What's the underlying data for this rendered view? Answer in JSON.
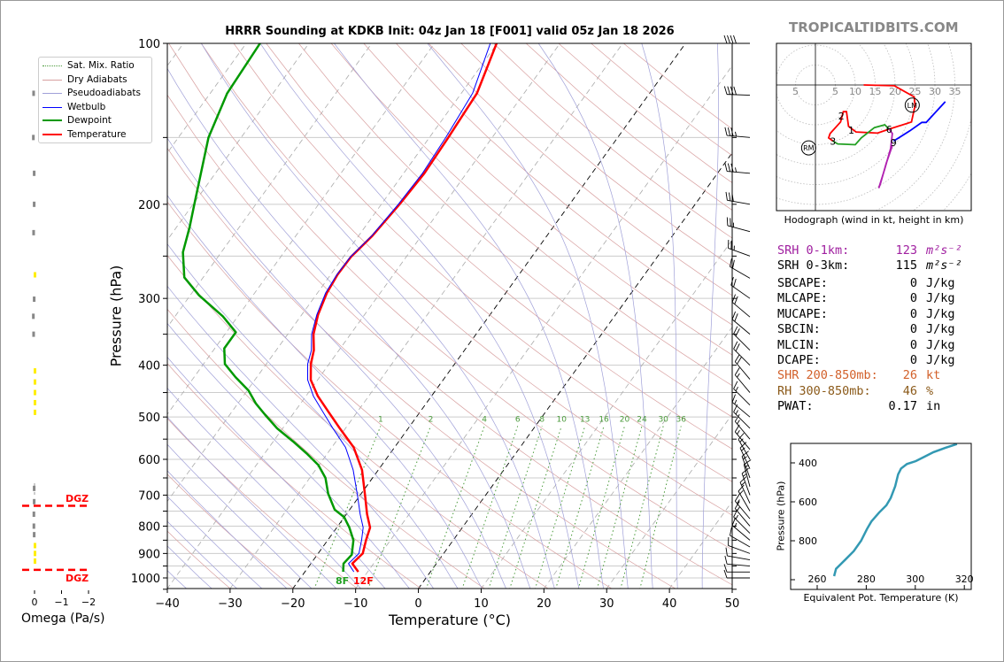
{
  "title": "HRRR Sounding at KDKB Init: 04z Jan 18 [F001] valid 05z Jan 18 2026",
  "watermark": "TROPICALTIDBITS.COM",
  "legend": [
    {
      "label": "Sat. Mix. Ratio",
      "color": "#4a9a3a",
      "style": "dotted"
    },
    {
      "label": "Dry Adiabats",
      "color": "#d8a0a0",
      "style": "solid"
    },
    {
      "label": "Pseudoadiabats",
      "color": "#a0a0d8",
      "style": "solid"
    },
    {
      "label": "Wetbulb",
      "color": "#0000ff",
      "style": "thin"
    },
    {
      "label": "Dewpoint",
      "color": "#009900",
      "style": "thick"
    },
    {
      "label": "Temperature",
      "color": "#ff0000",
      "style": "thick"
    }
  ],
  "chart_data": [
    {
      "type": "line",
      "name": "skew-t",
      "xlabel": "Temperature (°C)",
      "ylabel": "Pressure (hPa)",
      "xlim": [
        -40,
        50
      ],
      "ylim": [
        1050,
        100
      ],
      "xticks": [
        "−40",
        "−30",
        "−20",
        "−10",
        "0",
        "10",
        "20",
        "30",
        "40",
        "50"
      ],
      "xtick_values": [
        -40,
        -30,
        -20,
        -10,
        0,
        10,
        20,
        30,
        40,
        50
      ],
      "yticks": [
        "100",
        "200",
        "300",
        "400",
        "500",
        "600",
        "700",
        "800",
        "900",
        "1000"
      ],
      "ytick_values": [
        100,
        200,
        300,
        400,
        500,
        600,
        700,
        800,
        900,
        1000
      ],
      "mixing_ratio_labels": [
        "1",
        "2",
        "4",
        "6",
        "8",
        "10",
        "13",
        "16",
        "20",
        "24",
        "30",
        "36"
      ],
      "mixing_ratio_values": [
        1,
        2,
        4,
        6,
        8,
        10,
        13,
        16,
        20,
        24,
        30,
        36
      ],
      "surface_dewpoint_label": "8F",
      "surface_temperature_label": "12F",
      "series": [
        {
          "name": "Temperature",
          "color": "#ff0000",
          "p": [
            974,
            940,
            900,
            850,
            805,
            760,
            705,
            628,
            570,
            525,
            490,
            457,
            426,
            398,
            375,
            350,
            322,
            293,
            271,
            251,
            229,
            200,
            175,
            150,
            124,
            100
          ],
          "t": [
            -11.5,
            -13.4,
            -12.9,
            -13.9,
            -14.7,
            -16.7,
            -19.0,
            -22.6,
            -26.5,
            -30.9,
            -34.5,
            -38.1,
            -41.1,
            -42.9,
            -44.0,
            -45.9,
            -47.4,
            -48.5,
            -48.9,
            -48.8,
            -47.8,
            -47.1,
            -46.7,
            -47.0,
            -47.5,
            -50.1
          ]
        },
        {
          "name": "Wetbulb",
          "color": "#0000ff",
          "p": [
            974,
            940,
            900,
            850,
            805,
            760,
            705,
            628,
            570,
            525,
            490,
            457,
            426,
            398,
            375,
            350,
            322,
            293,
            271,
            251,
            229,
            200,
            175,
            150,
            124,
            100
          ],
          "t": [
            -12.2,
            -14.0,
            -13.5,
            -14.6,
            -15.8,
            -17.8,
            -20.2,
            -24.0,
            -27.8,
            -32.0,
            -35.4,
            -38.8,
            -41.6,
            -43.4,
            -44.4,
            -46.2,
            -47.6,
            -48.7,
            -49.0,
            -48.9,
            -47.9,
            -47.3,
            -47.0,
            -47.4,
            -48.2,
            -51.1
          ]
        },
        {
          "name": "Dewpoint",
          "color": "#009900",
          "p": [
            974,
            940,
            905,
            850,
            805,
            770,
            745,
            695,
            650,
            615,
            585,
            555,
            525,
            495,
            472,
            446,
            421,
            398,
            372,
            347,
            324,
            296,
            274,
            246,
            221,
            200,
            150,
            124,
            100
          ],
          "t": [
            -13.9,
            -14.8,
            -14.5,
            -15.9,
            -18.0,
            -20.0,
            -22.4,
            -25.3,
            -27.5,
            -30.1,
            -33.3,
            -36.9,
            -40.9,
            -44.4,
            -47.1,
            -49.8,
            -53.4,
            -56.6,
            -58.5,
            -58.5,
            -62.4,
            -68.6,
            -73.0,
            -76.1,
            -77.9,
            -79.8,
            -85.2,
            -87.3,
            -87.8
          ]
        }
      ],
      "winds": [
        {
          "p": 100,
          "dir": 270,
          "spd": 40
        },
        {
          "p": 125,
          "dir": 272,
          "spd": 40
        },
        {
          "p": 150,
          "dir": 275,
          "spd": 35
        },
        {
          "p": 175,
          "dir": 275,
          "spd": 35
        },
        {
          "p": 200,
          "dir": 280,
          "spd": 30
        },
        {
          "p": 225,
          "dir": 285,
          "spd": 25
        },
        {
          "p": 250,
          "dir": 290,
          "spd": 25
        },
        {
          "p": 275,
          "dir": 300,
          "spd": 20
        },
        {
          "p": 300,
          "dir": 305,
          "spd": 20
        },
        {
          "p": 325,
          "dir": 310,
          "spd": 20
        },
        {
          "p": 350,
          "dir": 310,
          "spd": 20
        },
        {
          "p": 375,
          "dir": 315,
          "spd": 20
        },
        {
          "p": 400,
          "dir": 315,
          "spd": 20
        },
        {
          "p": 425,
          "dir": 320,
          "spd": 20
        },
        {
          "p": 450,
          "dir": 320,
          "spd": 15
        },
        {
          "p": 475,
          "dir": 315,
          "spd": 15
        },
        {
          "p": 500,
          "dir": 310,
          "spd": 15
        },
        {
          "p": 525,
          "dir": 315,
          "spd": 15
        },
        {
          "p": 550,
          "dir": 320,
          "spd": 15
        },
        {
          "p": 575,
          "dir": 320,
          "spd": 15
        },
        {
          "p": 600,
          "dir": 330,
          "spd": 15
        },
        {
          "p": 625,
          "dir": 335,
          "spd": 15
        },
        {
          "p": 650,
          "dir": 340,
          "spd": 15
        },
        {
          "p": 675,
          "dir": 345,
          "spd": 15
        },
        {
          "p": 700,
          "dir": 340,
          "spd": 15
        },
        {
          "p": 725,
          "dir": 335,
          "spd": 15
        },
        {
          "p": 750,
          "dir": 330,
          "spd": 15
        },
        {
          "p": 775,
          "dir": 320,
          "spd": 15
        },
        {
          "p": 800,
          "dir": 320,
          "spd": 15
        },
        {
          "p": 825,
          "dir": 315,
          "spd": 15
        },
        {
          "p": 850,
          "dir": 310,
          "spd": 15
        },
        {
          "p": 875,
          "dir": 300,
          "spd": 10
        },
        {
          "p": 900,
          "dir": 290,
          "spd": 10
        },
        {
          "p": 925,
          "dir": 280,
          "spd": 10
        },
        {
          "p": 950,
          "dir": 275,
          "spd": 10
        },
        {
          "p": 975,
          "dir": 270,
          "spd": 10
        },
        {
          "p": 1000,
          "dir": 270,
          "spd": 10
        }
      ]
    },
    {
      "type": "line",
      "name": "hodograph",
      "xlabel": "Hodograph (wind in kt, height in km)",
      "ring_labels": [
        "5",
        "5",
        "10",
        "15",
        "20",
        "25",
        "30",
        "35"
      ],
      "ring_label_values": [
        -5,
        5,
        10,
        15,
        20,
        25,
        30,
        35
      ],
      "segments": [
        {
          "name": "0-3km",
          "color": "#ff0000",
          "u": [
            12.1,
            19.8,
            24.8,
            25.0,
            24.1,
            18.5,
            15.6,
            10.2,
            8.3,
            7.8,
            7.0,
            6.3,
            3.7,
            3.3,
            4.4
          ],
          "v": [
            0,
            -0.2,
            -3.0,
            -5.2,
            -9.3,
            -11.1,
            -12.1,
            -11.8,
            -10.4,
            -6.7,
            -6.7,
            -9.3,
            -12.2,
            -13.3,
            -14.1
          ]
        },
        {
          "name": "3-6km",
          "color": "#22a022",
          "u": [
            4.4,
            5.6,
            10.0,
            11.5,
            14.8,
            17.4,
            18.5
          ],
          "v": [
            -14.1,
            -14.8,
            -15.0,
            -13.3,
            -10.7,
            -10.0,
            -11.1
          ]
        },
        {
          "name": "6-9km",
          "color": "#b020b0",
          "u": [
            18.5,
            19.3,
            18.9,
            17.4,
            15.9,
            16.3,
            17.8,
            19.3
          ],
          "v": [
            -11.1,
            -12.2,
            -15.9,
            -21.1,
            -25.9,
            -24.8,
            -19.6,
            -15.2
          ]
        },
        {
          "name": "9-12km",
          "color": "#0000ff",
          "u": [
            19.6,
            23.7,
            26.7,
            27.8,
            32.6
          ],
          "v": [
            -14.1,
            -11.5,
            -9.4,
            -9.4,
            -4.2
          ]
        }
      ],
      "height_labels": [
        {
          "text": "1",
          "u": 9.0,
          "v": -11.3
        },
        {
          "text": "2",
          "u": 6.5,
          "v": -7.8
        },
        {
          "text": "3",
          "u": 4.4,
          "v": -14.1
        },
        {
          "text": "6",
          "u": 18.5,
          "v": -11.1
        },
        {
          "text": "9",
          "u": 19.6,
          "v": -14.4
        }
      ],
      "storm_motion": [
        {
          "text": "RM",
          "u": -1.7,
          "v": -15.8
        },
        {
          "text": "LM",
          "u": 24.3,
          "v": -4.4
        }
      ]
    },
    {
      "type": "line",
      "name": "theta-e",
      "xlabel": "Equivalent Pot. Temperature (K)",
      "ylabel": "Pressure (hPa)",
      "xlim": [
        249,
        323
      ],
      "ylim": [
        1050,
        300
      ],
      "xticks": [
        "260",
        "280",
        "300",
        "320"
      ],
      "xtick_values": [
        260,
        280,
        300,
        320
      ],
      "yticks": [
        "400",
        "600",
        "800"
      ],
      "ytick_values": [
        400,
        600,
        800,
        1000
      ],
      "color": "#3399b3",
      "theta_e": [
        266.9,
        267.7,
        271.3,
        274.9,
        277.9,
        280.3,
        282.1,
        285.2,
        288.2,
        290.0,
        291.8,
        293.0,
        294.2,
        296.6,
        300.2,
        303.8,
        307.4,
        312.2,
        317.0
      ],
      "p": [
        982,
        944,
        899,
        853,
        800,
        740,
        701,
        656,
        618,
        580,
        520,
        459,
        429,
        406,
        391,
        368,
        345,
        323,
        303
      ]
    },
    {
      "type": "bar",
      "name": "omega",
      "xlabel": "Omega (Pa/s)",
      "xticks": [
        "0",
        "−1",
        "−2"
      ],
      "xtick_values": [
        0,
        -1,
        -2
      ],
      "dgz_label": "DGZ",
      "dgz_pressures": [
        733,
        966
      ],
      "p": [
        124,
        150,
        175,
        200,
        226,
        271,
        301,
        324,
        350,
        410,
        430,
        450,
        470,
        490,
        680,
        720,
        760,
        800,
        830,
        870,
        900,
        930
      ],
      "omega": [
        0.05,
        0.06,
        0.03,
        0.03,
        0.05,
        -0.02,
        0.03,
        0.06,
        0.05,
        -0.03,
        -0.04,
        -0.04,
        -0.03,
        -0.02,
        0.03,
        0.03,
        0.04,
        0.04,
        0.03,
        -0.03,
        -0.05,
        -0.05
      ]
    }
  ],
  "stats": [
    {
      "label": "SRH 0-1km:",
      "value": "123",
      "unit": "m²s⁻²",
      "color": "#a020a0"
    },
    {
      "label": "SRH 0-3km:",
      "value": "115",
      "unit": "m²s⁻²",
      "color": "#000000"
    },
    {
      "label": "SBCAPE:",
      "value": "0",
      "unit": "J/kg",
      "color": "#000000"
    },
    {
      "label": "MLCAPE:",
      "value": "0",
      "unit": "J/kg",
      "color": "#000000"
    },
    {
      "label": "MUCAPE:",
      "value": "0",
      "unit": "J/kg",
      "color": "#000000"
    },
    {
      "label": "SBCIN:",
      "value": "0",
      "unit": "J/kg",
      "color": "#000000"
    },
    {
      "label": "MLCIN:",
      "value": "0",
      "unit": "J/kg",
      "color": "#000000"
    },
    {
      "label": "DCAPE:",
      "value": "0",
      "unit": "J/kg",
      "color": "#000000"
    },
    {
      "label": "SHR 200-850mb:",
      "value": "26",
      "unit": "kt",
      "color": "#d2602a"
    },
    {
      "label": "RH 300-850mb:",
      "value": "46",
      "unit": "%",
      "color": "#8b5a1a"
    },
    {
      "label": "PWAT:",
      "value": "0.17",
      "unit": "in",
      "color": "#000000"
    }
  ]
}
